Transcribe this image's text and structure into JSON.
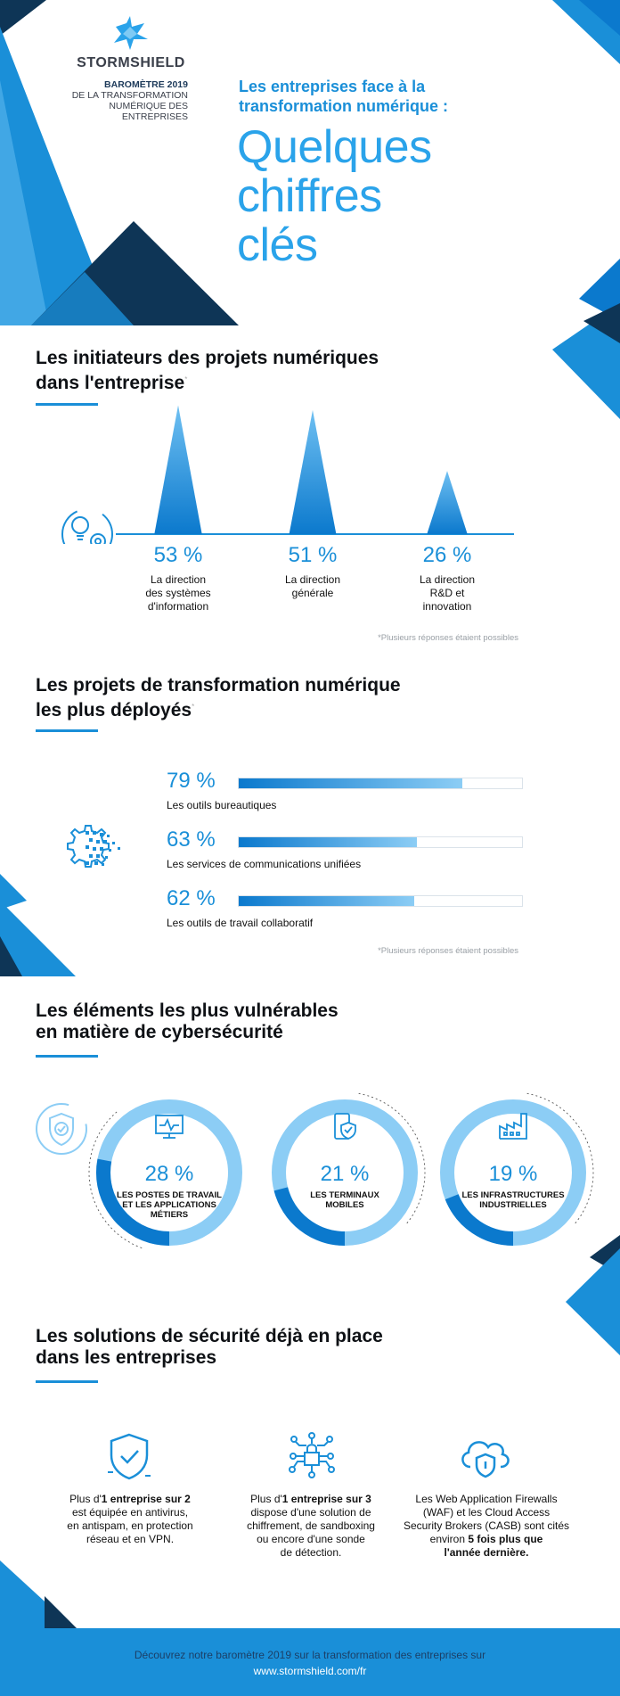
{
  "brand": {
    "name": "STORMSHIELD",
    "barometre_line1": "BAROMÈTRE 2019",
    "barometre_line2": "DE LA TRANSFORMATION",
    "barometre_line3": "NUMÉRIQUE DES",
    "barometre_line4": "ENTREPRISES"
  },
  "header": {
    "subtitle_line1": "Les entreprises face à la",
    "subtitle_line2": "transformation numérique :",
    "title_line1": "Quelques",
    "title_line2": "chiffres",
    "title_line3": "clés"
  },
  "section1": {
    "title_line1": "Les initiateurs des projets numériques",
    "title_line2": "dans l'entreprise",
    "asterisk": "*",
    "note": "*Plusieurs réponses étaient possibles",
    "items": [
      {
        "value": "53 %",
        "label_line1": "La direction",
        "label_line2": "des systèmes",
        "label_line3": "d'information",
        "percent": 53
      },
      {
        "value": "51 %",
        "label_line1": "La direction",
        "label_line2": "générale",
        "label_line3": "",
        "percent": 51
      },
      {
        "value": "26 %",
        "label_line1": "La direction",
        "label_line2": "R&D et",
        "label_line3": "innovation",
        "percent": 26
      }
    ]
  },
  "section2": {
    "title_line1": "Les projets de transformation numérique",
    "title_line2": "les plus déployés",
    "asterisk": "*",
    "note": "*Plusieurs réponses étaient possibles",
    "items": [
      {
        "value": "79 %",
        "label": "Les outils bureautiques",
        "percent": 79
      },
      {
        "value": "63 %",
        "label": "Les services de communications unifiées",
        "percent": 63
      },
      {
        "value": "62 %",
        "label": "Les outils de travail collaboratif",
        "percent": 62
      }
    ]
  },
  "section3": {
    "title_line1": "Les éléments les plus vulnérables",
    "title_line2": "en matière de cybersécurité",
    "items": [
      {
        "value": "28 %",
        "label_line1": "LES POSTES DE TRAVAIL",
        "label_line2": "ET LES APPLICATIONS",
        "label_line3": "MÉTIERS",
        "percent": 28,
        "icon": "monitor-icon"
      },
      {
        "value": "21 %",
        "label_line1": "LES TERMINAUX",
        "label_line2": "MOBILES",
        "label_line3": "",
        "percent": 21,
        "icon": "mobile-shield-icon"
      },
      {
        "value": "19 %",
        "label_line1": "LES INFRASTRUCTURES",
        "label_line2": "INDUSTRIELLES",
        "label_line3": "",
        "percent": 19,
        "icon": "factory-icon"
      }
    ]
  },
  "section4": {
    "title_line1": "Les solutions de sécurité déjà en place",
    "title_line2": "dans les entreprises",
    "items": [
      {
        "icon": "shield-check-icon",
        "lines": [
          [
            "Plus d'",
            "1 entreprise sur 2",
            ""
          ],
          [
            "est équipée en antivirus,",
            "",
            ""
          ],
          [
            "en antispam, en protection",
            "",
            ""
          ],
          [
            "réseau et en VPN.",
            "",
            ""
          ]
        ]
      },
      {
        "icon": "circuit-lock-icon",
        "lines": [
          [
            "Plus d'",
            "1 entreprise sur 3",
            ""
          ],
          [
            "dispose d'une solution de",
            "",
            ""
          ],
          [
            "chiffrement, de sandboxing",
            "",
            ""
          ],
          [
            "ou encore d'une sonde",
            "",
            ""
          ],
          [
            "de détection.",
            "",
            ""
          ]
        ]
      },
      {
        "icon": "cloud-shield-icon",
        "lines": [
          [
            "Les Web Application Firewalls",
            "",
            ""
          ],
          [
            "(WAF) et les Cloud Access",
            "",
            ""
          ],
          [
            "Security Brokers (CASB) sont cités",
            "",
            ""
          ],
          [
            "environ ",
            "5 fois plus que",
            ""
          ],
          [
            "",
            "l'année dernière.",
            ""
          ]
        ]
      }
    ]
  },
  "footer": {
    "line1": "Découvrez notre baromètre 2019 sur la transformation des entreprises sur",
    "line2": "www.stormshield.com/fr"
  },
  "colors": {
    "primary_blue": "#1a8fd8",
    "light_blue": "#2aa3ea",
    "dark_navy": "#0f3a5c",
    "pale_blue": "#8ccdf5"
  }
}
